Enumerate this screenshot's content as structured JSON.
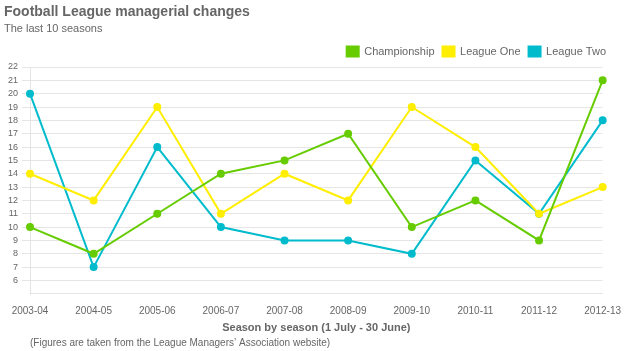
{
  "chart_data": {
    "type": "line",
    "title": "Football League managerial changes",
    "subtitle": "The last 10 seasons",
    "xlabel": "Season by season (1 July - 30 June)",
    "annotations": [
      "(Figures are taken from the League Managers’ Association website)"
    ],
    "categories": [
      "2003-04",
      "2004-05",
      "2005-06",
      "2006-07",
      "2007-08",
      "2008-09",
      "2009-10",
      "2010-11",
      "2011-12",
      "2012-13"
    ],
    "series": [
      {
        "name": "Championship",
        "color": "#66cc00",
        "values": [
          10,
          8,
          11,
          14,
          15,
          17,
          10,
          12,
          9,
          21
        ]
      },
      {
        "name": "League One",
        "color": "#ffee00",
        "values": [
          14,
          12,
          19,
          11,
          14,
          12,
          19,
          16,
          11,
          13
        ]
      },
      {
        "name": "League Two",
        "color": "#00bbcc",
        "values": [
          20,
          7,
          16,
          10,
          9,
          9,
          8,
          15,
          11,
          18
        ]
      }
    ],
    "ylim": [
      5,
      22
    ],
    "yticks": [
      6,
      7,
      8,
      9,
      10,
      11,
      12,
      13,
      14,
      15,
      16,
      17,
      18,
      19,
      20,
      21,
      22
    ],
    "grid": "y",
    "legend": "upper right",
    "marker": "circle"
  }
}
